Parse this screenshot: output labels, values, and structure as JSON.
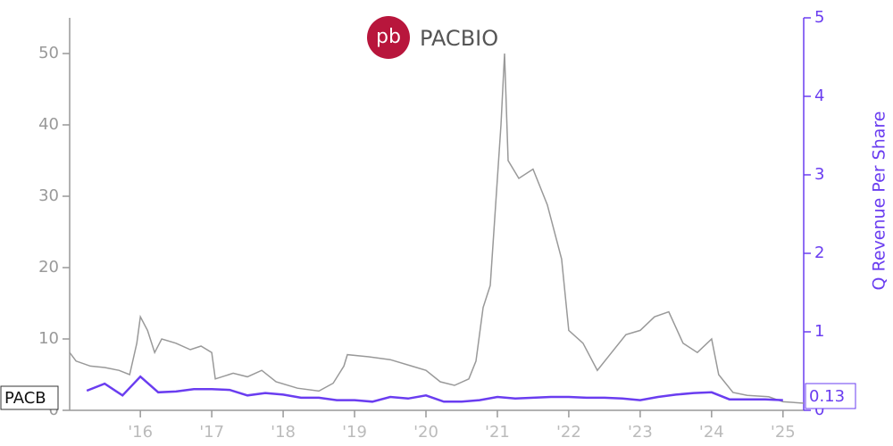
{
  "chart_data": {
    "type": "line",
    "logo_text": "PACBIO",
    "y2_label": "Q Revenue Per Share",
    "xlim": [
      2015.01,
      2025.29
    ],
    "xticks": [
      {
        "value": 2016,
        "label": "'16"
      },
      {
        "value": 2017,
        "label": "'17"
      },
      {
        "value": 2018,
        "label": "'18"
      },
      {
        "value": 2019,
        "label": "'19"
      },
      {
        "value": 2020,
        "label": "'20"
      },
      {
        "value": 2021,
        "label": "'21"
      },
      {
        "value": 2022,
        "label": "'22"
      },
      {
        "value": 2023,
        "label": "'23"
      },
      {
        "value": 2024,
        "label": "'24"
      },
      {
        "value": 2025,
        "label": "'25"
      }
    ],
    "ylim": [
      0,
      55
    ],
    "yticks": [
      0,
      10,
      20,
      30,
      40,
      50
    ],
    "y2lim": [
      0,
      5
    ],
    "y2ticks": [
      0,
      1,
      2,
      3,
      4,
      5
    ],
    "series": [
      {
        "name": "PACB",
        "color": "#999999",
        "x": [
          2015.01,
          2015.1,
          2015.3,
          2015.5,
          2015.7,
          2015.85,
          2015.95,
          2016.0,
          2016.1,
          2016.2,
          2016.3,
          2016.5,
          2016.7,
          2016.85,
          2017.0,
          2017.05,
          2017.3,
          2017.5,
          2017.7,
          2017.9,
          2018.2,
          2018.5,
          2018.7,
          2018.85,
          2018.9,
          2019.2,
          2019.5,
          2019.8,
          2020.0,
          2020.2,
          2020.4,
          2020.6,
          2020.7,
          2020.8,
          2020.9,
          2021.0,
          2021.05,
          2021.1,
          2021.15,
          2021.3,
          2021.5,
          2021.7,
          2021.9,
          2022.0,
          2022.2,
          2022.4,
          2022.6,
          2022.8,
          2023.0,
          2023.2,
          2023.4,
          2023.6,
          2023.8,
          2024.0,
          2024.1,
          2024.3,
          2024.5,
          2024.8,
          2025.0,
          2025.29
        ],
        "values": [
          8.1,
          6.9,
          6.2,
          6.0,
          5.6,
          5.0,
          9.4,
          13.1,
          11.2,
          8.1,
          10.0,
          9.4,
          8.5,
          9.0,
          8.1,
          4.4,
          5.2,
          4.7,
          5.6,
          4.0,
          3.1,
          2.7,
          3.8,
          6.2,
          7.8,
          7.5,
          7.1,
          6.2,
          5.6,
          4.0,
          3.5,
          4.4,
          6.9,
          14.4,
          17.5,
          32.5,
          40.0,
          50.0,
          35.0,
          32.5,
          33.8,
          28.8,
          21.2,
          11.2,
          9.4,
          5.6,
          8.1,
          10.6,
          11.2,
          13.1,
          13.8,
          9.4,
          8.1,
          10.0,
          5.0,
          2.5,
          2.1,
          1.9,
          1.2,
          1.0
        ]
      },
      {
        "name": "Q Revenue Per Share",
        "color": "#6a3df0",
        "axis": "y2",
        "x": [
          2015.25,
          2015.5,
          2015.75,
          2016.0,
          2016.25,
          2016.5,
          2016.75,
          2017.0,
          2017.25,
          2017.5,
          2017.75,
          2018.0,
          2018.25,
          2018.5,
          2018.75,
          2019.0,
          2019.25,
          2019.5,
          2019.75,
          2020.0,
          2020.25,
          2020.5,
          2020.75,
          2021.0,
          2021.25,
          2021.5,
          2021.75,
          2022.0,
          2022.25,
          2022.5,
          2022.75,
          2023.0,
          2023.25,
          2023.5,
          2023.75,
          2024.0,
          2024.25,
          2024.5,
          2024.75,
          2025.0
        ],
        "values": [
          0.25,
          0.34,
          0.19,
          0.43,
          0.23,
          0.24,
          0.27,
          0.27,
          0.26,
          0.19,
          0.22,
          0.2,
          0.16,
          0.16,
          0.13,
          0.13,
          0.11,
          0.17,
          0.15,
          0.19,
          0.11,
          0.11,
          0.13,
          0.17,
          0.15,
          0.16,
          0.17,
          0.17,
          0.16,
          0.16,
          0.15,
          0.13,
          0.17,
          0.2,
          0.22,
          0.23,
          0.14,
          0.14,
          0.14,
          0.13
        ]
      }
    ]
  }
}
